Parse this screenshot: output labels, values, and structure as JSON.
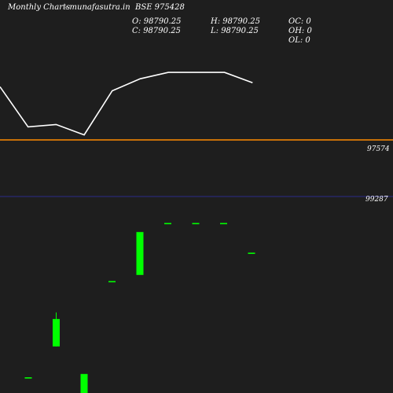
{
  "header": {
    "brand": "Monthly Charts",
    "site": "- munafasutra.in",
    "symbol": "BSE 975428"
  },
  "ohlc": {
    "open": "O: 98790.25",
    "close": "C: 98790.25",
    "high": "H: 98790.25",
    "low": "L: 98790.25",
    "oc": "OC: 0",
    "oh": "OH: 0",
    "ol": "OL: 0"
  },
  "chart_data": {
    "type": "candlestick",
    "reference_lines": [
      {
        "value": 97574,
        "label": "97574",
        "color": "#ff8c00"
      },
      {
        "value": 99287,
        "label": "99287",
        "color": "#2a2a8a"
      }
    ],
    "colors": {
      "up": "#00ff00",
      "down": "#ff0000",
      "line": "#ffffff",
      "bg": "#1e1e1e"
    },
    "line_series": [
      0.78,
      0.28,
      0.31,
      0.18,
      0.73,
      0.88,
      0.96,
      0.96,
      0.96,
      0.83
    ],
    "candles": [
      {
        "open": 0.0,
        "close": 0.0,
        "high": 0.0,
        "low": 0.0
      },
      {
        "open": 0.187,
        "close": 0.353,
        "high": 0.393,
        "low": 0.187
      },
      {
        "open": -0.2,
        "close": 0.02,
        "high": 0.02,
        "low": -0.2
      },
      {
        "open": 0.583,
        "close": 0.583,
        "high": 0.583,
        "low": 0.583
      },
      {
        "open": 0.62,
        "close": 0.88,
        "high": 0.88,
        "low": 0.62
      },
      {
        "open": 0.935,
        "close": 0.935,
        "high": 0.935,
        "low": 0.935
      },
      {
        "open": 0.935,
        "close": 0.935,
        "high": 0.935,
        "low": 0.935
      },
      {
        "open": 0.935,
        "close": 0.935,
        "high": 0.935,
        "low": 0.935
      },
      {
        "open": 0.755,
        "close": 0.755,
        "high": 0.755,
        "low": 0.755
      }
    ]
  }
}
